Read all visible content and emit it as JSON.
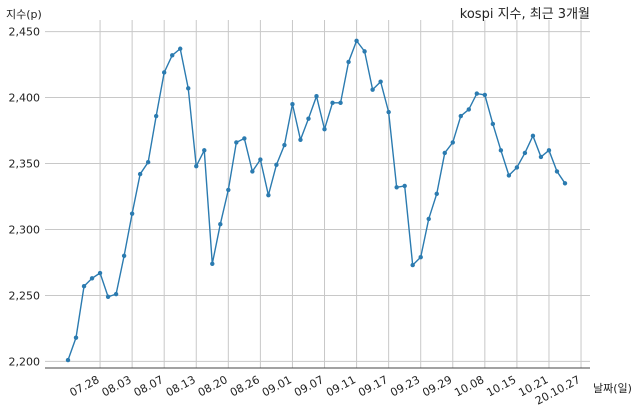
{
  "chart_data": {
    "type": "line",
    "title": "kospi 지수, 최근 3개월",
    "ylabel": "지수(p)",
    "xlabel": "날짜(일)",
    "ylim": [
      2195,
      2455
    ],
    "y_ticks": [
      2200,
      2250,
      2300,
      2350,
      2400,
      2450
    ],
    "y_tick_labels": [
      "2,200",
      "2,250",
      "2,300",
      "2,350",
      "2,400",
      "2,450"
    ],
    "x_tick_labels": [
      "07.28",
      "08.03",
      "08.07",
      "08.13",
      "08.20",
      "08.26",
      "09.01",
      "09.07",
      "09.11",
      "09.17",
      "09.23",
      "09.29",
      "10.08",
      "10.15",
      "10.21",
      "20.10.27"
    ],
    "x_tick_positions": [
      4,
      8,
      12,
      16,
      20,
      24,
      28,
      32,
      36,
      40,
      44,
      48,
      52,
      56,
      60,
      64
    ],
    "grid": true,
    "color": "#2b7bb0",
    "series": [
      {
        "values": [
          2201,
          2218,
          2257,
          2263,
          2267,
          2249,
          2251,
          2280,
          2312,
          2342,
          2351,
          2386,
          2419,
          2432,
          2437,
          2407,
          2348,
          2360,
          2274,
          2304,
          2330,
          2366,
          2369,
          2344,
          2353,
          2326,
          2349,
          2364,
          2395,
          2368,
          2384,
          2401,
          2376,
          2396,
          2396,
          2427,
          2443,
          2435,
          2406,
          2412,
          2389,
          2332,
          2333,
          2273,
          2279,
          2308,
          2327,
          2358,
          2366,
          2386,
          2391,
          2403,
          2402,
          2380,
          2360,
          2341,
          2347,
          2358,
          2371,
          2355,
          2360,
          2344,
          2335
        ]
      }
    ]
  }
}
